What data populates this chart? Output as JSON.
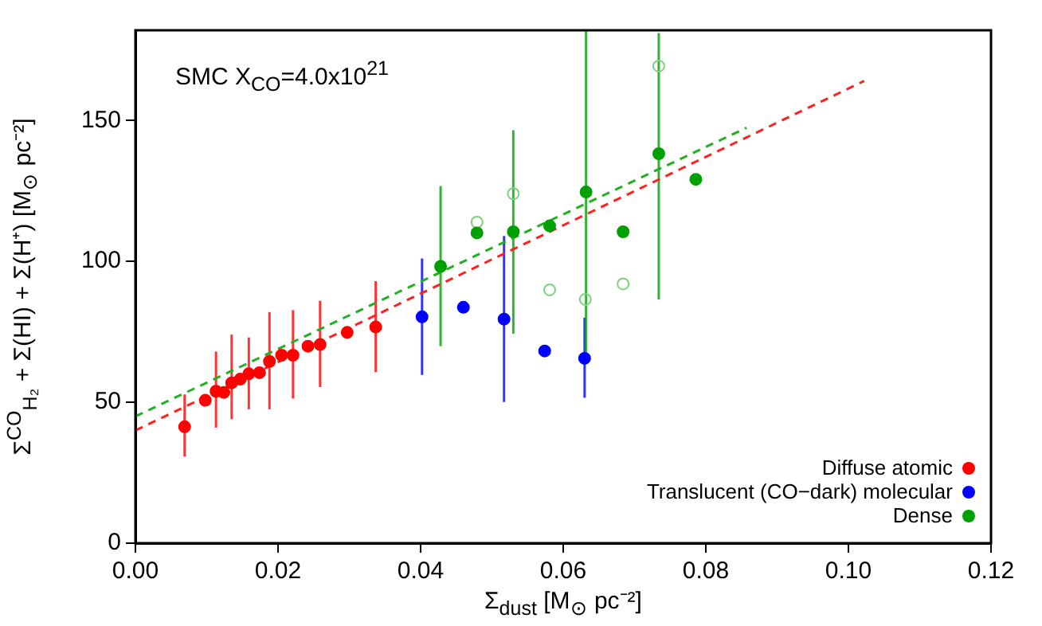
{
  "chart_data": {
    "type": "scatter",
    "xlabel": "Σ$_{dust}$ [M$_{⊙}$ pc⁻²]",
    "ylabel": "Σ$^{CO}$$_{H₂}$ + Σ(HI) + Σ(H⁺) [M$_{⊙}$ pc⁻²]",
    "annotations": [
      "SMC X$_{CO}$=4.0x10$^{21}$"
    ],
    "xlim": [
      0,
      0.12
    ],
    "xticks": [
      {
        "value": 0,
        "label": "0.00"
      },
      0.02,
      0.04,
      0.06,
      0.08,
      {
        "value": 0.1,
        "label": "0.10"
      },
      0.12
    ],
    "ylim": [
      0,
      182
    ],
    "yticks": [
      0,
      50,
      100,
      150
    ],
    "grid": false,
    "legend": "bottom right",
    "marker": "circle",
    "series": [
      {
        "name": "Diffuse atomic",
        "color": "#ff0000",
        "x": [
          0.0069,
          0.0098,
          0.0113,
          0.0124,
          0.0135,
          0.0147,
          0.0159,
          0.0174,
          0.0188,
          0.0205,
          0.0221,
          0.0242,
          0.0259,
          0.0297,
          0.0337
        ],
        "values": [
          41.3,
          50.7,
          53.9,
          53.5,
          56.9,
          58.2,
          60.1,
          60.5,
          64.5,
          66.7,
          66.7,
          69.9,
          70.5,
          74.8,
          76.7
        ],
        "errors": [
          [
            30.7,
            52.8
          ],
          null,
          [
            41,
            68
          ],
          null,
          [
            44,
            74
          ],
          null,
          [
            47.5,
            73
          ],
          null,
          [
            47.5,
            82
          ],
          null,
          [
            51.3,
            82.7
          ],
          null,
          [
            55.4,
            86
          ],
          null,
          [
            60.7,
            93
          ]
        ]
      },
      {
        "name": "Translucent (CO−dark) molecular",
        "color": "#0000ff",
        "x": [
          0.0402,
          0.046,
          0.0517,
          0.0574,
          0.063
        ],
        "values": [
          80.3,
          83.7,
          79.5,
          68.2,
          65.6
        ],
        "errors": [
          [
            59.7,
            101
          ],
          null,
          [
            50.1,
            109
          ],
          null,
          [
            51.6,
            80
          ]
        ]
      },
      {
        "name": "Dense",
        "color": "#00a000",
        "x": [
          0.0428,
          0.0479,
          0.053,
          0.0581,
          0.0632,
          0.0684,
          0.0734,
          0.0786
        ],
        "values": [
          98.2,
          110.1,
          110.5,
          112.6,
          124.6,
          110.5,
          138.2,
          129.1
        ],
        "errors": [
          [
            69.9,
            126.7
          ],
          null,
          [
            74.3,
            146.5
          ],
          null,
          [
            66.7,
            182
          ],
          null,
          [
            86.5,
            181
          ],
          null
        ]
      },
      {
        "color": "#80d080",
        "x": [
          0.0479,
          0.053,
          0.0581,
          0.0631,
          0.0684,
          0.0734
        ],
        "values": [
          113.9,
          124,
          89.9,
          86.5,
          92,
          169.3
        ]
      },
      {
        "type": "line",
        "color": "#ff2020",
        "line_style": "dashed",
        "marker": "none",
        "x": [
          0,
          0.1022
        ],
        "values": [
          40,
          164
        ]
      },
      {
        "type": "line",
        "color": "#20b020",
        "line_style": "dashed",
        "marker": "none",
        "x": [
          0,
          0.0857
        ],
        "values": [
          45,
          147.4
        ]
      }
    ]
  }
}
